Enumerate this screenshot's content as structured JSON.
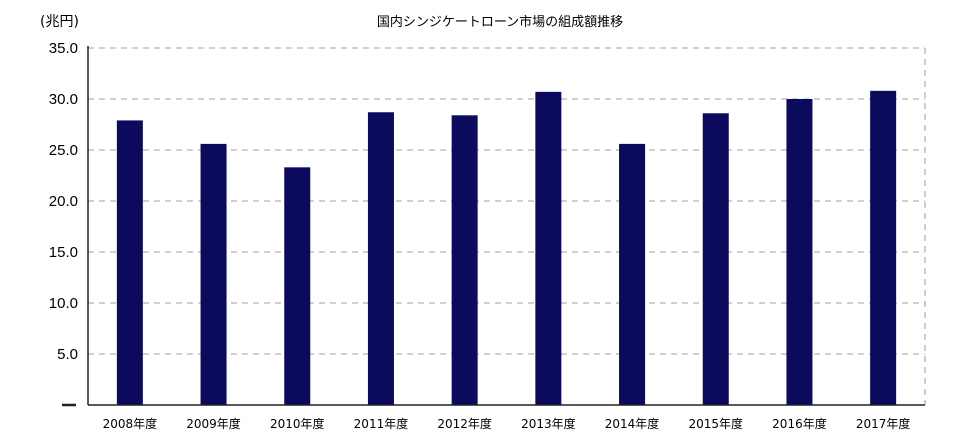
{
  "chart_data": {
    "type": "bar",
    "title": "国内シンジケートローン市場の組成額推移",
    "ylabel": "(兆円)",
    "xlabel": "",
    "categories": [
      "2008年度",
      "2009年度",
      "2010年度",
      "2011年度",
      "2012年度",
      "2013年度",
      "2014年度",
      "2015年度",
      "2016年度",
      "2017年度"
    ],
    "values": [
      27.9,
      25.6,
      23.3,
      28.7,
      28.4,
      30.7,
      25.6,
      28.6,
      30.0,
      30.8
    ],
    "ylim": [
      0,
      35
    ],
    "yticks": [
      5,
      10,
      15,
      20,
      25,
      30,
      35
    ],
    "ytick_labels": [
      "5.0",
      "10.0",
      "15.0",
      "20.0",
      "25.0",
      "30.0",
      "35.0"
    ],
    "grid": true,
    "bar_color": "#0b0a5c",
    "grid_color": "#b3b3b3",
    "axis_color": "#222222"
  }
}
